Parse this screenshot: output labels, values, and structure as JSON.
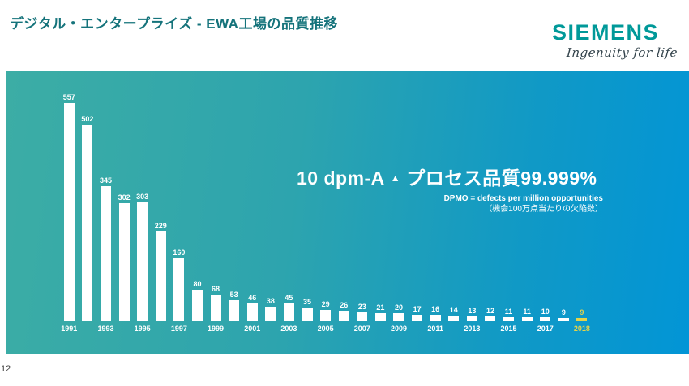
{
  "header": {
    "title": "デジタル・エンタープライズ - EWA工場の品質推移",
    "logo_text": "SIEMENS",
    "logo_tagline": "Ingenuity for life",
    "logo_color": "#009999",
    "title_color": "#15737b"
  },
  "annotation": {
    "headline_metric": "10 dpm-A",
    "symbol": "▲",
    "headline_text": "プロセス品質99.999%",
    "note_en": "DPMO = defects per million opportunities",
    "note_jp": "（機会100万点当たりの欠陥数）"
  },
  "footer": {
    "page_number": "12"
  },
  "colors": {
    "gradient_left_teal": "#3cada5",
    "gradient_right_blue": "#0295d6",
    "bar_color": "#ffffff",
    "highlight_color": "#e3d34a"
  },
  "chart_data": {
    "type": "bar",
    "title": "EWA工場の品質推移",
    "ylabel": "DPMO",
    "ylim": [
      0,
      600
    ],
    "grid": false,
    "legend": "none",
    "bars": [
      {
        "value": 557,
        "year_label": "1991",
        "highlight": false
      },
      {
        "value": 502,
        "year_label": "",
        "highlight": false
      },
      {
        "value": 345,
        "year_label": "1993",
        "highlight": false
      },
      {
        "value": 302,
        "year_label": "",
        "highlight": false
      },
      {
        "value": 303,
        "year_label": "1995",
        "highlight": false
      },
      {
        "value": 229,
        "year_label": "",
        "highlight": false
      },
      {
        "value": 160,
        "year_label": "1997",
        "highlight": false
      },
      {
        "value": 80,
        "year_label": "",
        "highlight": false
      },
      {
        "value": 68,
        "year_label": "1999",
        "highlight": false
      },
      {
        "value": 53,
        "year_label": "",
        "highlight": false
      },
      {
        "value": 46,
        "year_label": "2001",
        "highlight": false
      },
      {
        "value": 38,
        "year_label": "",
        "highlight": false
      },
      {
        "value": 45,
        "year_label": "2003",
        "highlight": false
      },
      {
        "value": 35,
        "year_label": "",
        "highlight": false
      },
      {
        "value": 29,
        "year_label": "2005",
        "highlight": false
      },
      {
        "value": 26,
        "year_label": "",
        "highlight": false
      },
      {
        "value": 23,
        "year_label": "2007",
        "highlight": false
      },
      {
        "value": 21,
        "year_label": "",
        "highlight": false
      },
      {
        "value": 20,
        "year_label": "2009",
        "highlight": false
      },
      {
        "value": 17,
        "year_label": "",
        "highlight": false
      },
      {
        "value": 16,
        "year_label": "2011",
        "highlight": false
      },
      {
        "value": 14,
        "year_label": "",
        "highlight": false
      },
      {
        "value": 13,
        "year_label": "2013",
        "highlight": false
      },
      {
        "value": 12,
        "year_label": "",
        "highlight": false
      },
      {
        "value": 11,
        "year_label": "2015",
        "highlight": false
      },
      {
        "value": 11,
        "year_label": "",
        "highlight": false
      },
      {
        "value": 10,
        "year_label": "2017",
        "highlight": false
      },
      {
        "value": 9,
        "year_label": "",
        "highlight": false
      },
      {
        "value": 9,
        "year_label": "2018",
        "highlight": true
      }
    ]
  }
}
